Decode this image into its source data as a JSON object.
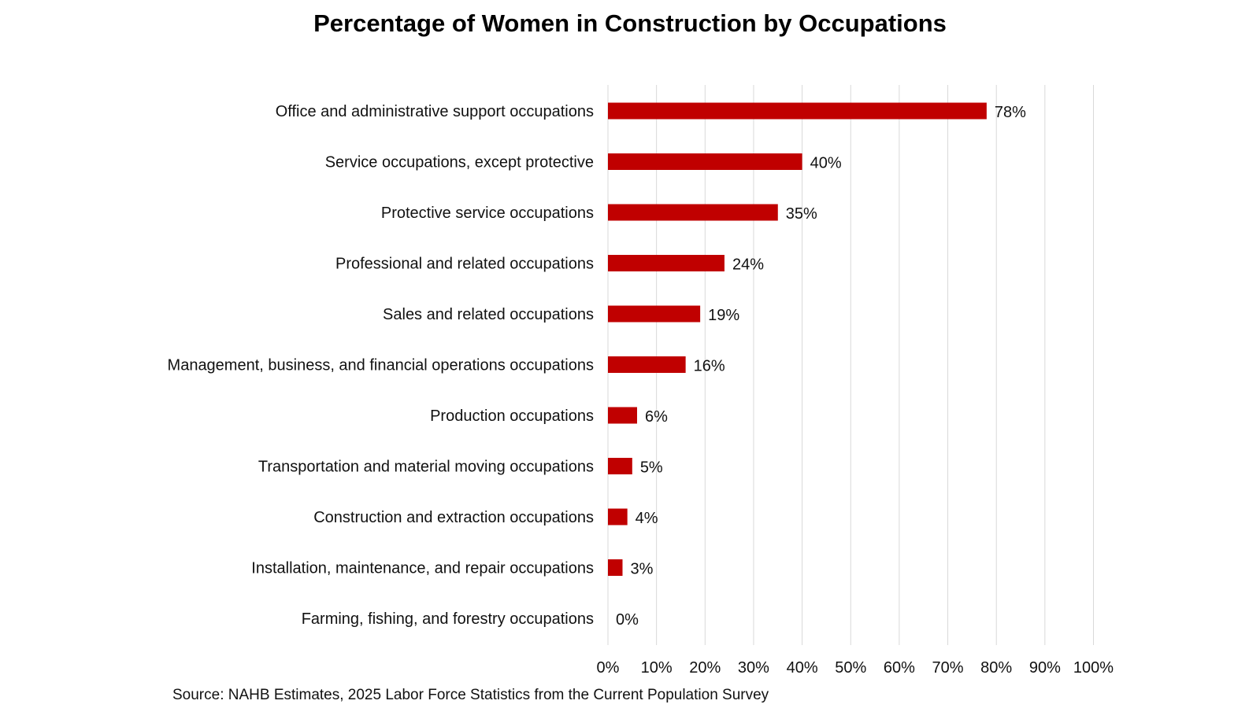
{
  "chart_data": {
    "type": "bar",
    "orientation": "horizontal",
    "title": "Percentage of Women in Construction by Occupations",
    "source": "Source: NAHB Estimates, 2025 Labor Force Statistics from the Current Population Survey",
    "categories": [
      "Office and administrative support occupations",
      "Service occupations, except protective",
      "Protective service occupations",
      "Professional and related occupations",
      "Sales and related occupations",
      "Management, business, and financial operations occupations",
      "Production occupations",
      "Transportation and material moving occupations",
      "Construction and extraction occupations",
      "Installation, maintenance, and repair occupations",
      "Farming, fishing, and forestry occupations"
    ],
    "values": [
      78,
      40,
      35,
      24,
      19,
      16,
      6,
      5,
      4,
      3,
      0
    ],
    "data_labels": [
      "78%",
      "40%",
      "35%",
      "24%",
      "19%",
      "16%",
      "6%",
      "5%",
      "4%",
      "3%",
      "0%"
    ],
    "x_ticks": [
      "0%",
      "10%",
      "20%",
      "30%",
      "40%",
      "50%",
      "60%",
      "70%",
      "80%",
      "90%",
      "100%"
    ],
    "xlim": [
      0,
      100
    ],
    "xlabel": "",
    "ylabel": "",
    "grid": "vertical",
    "legend": "none",
    "colors": {
      "bar": "#C00000",
      "grid": "#D9D9D9"
    }
  }
}
